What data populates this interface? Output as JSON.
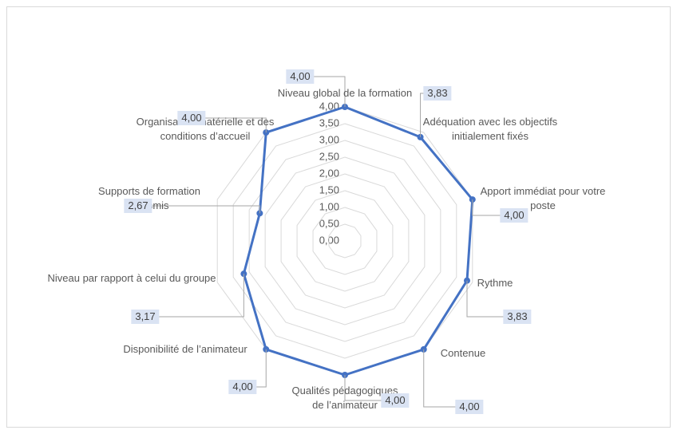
{
  "chart_data": {
    "type": "radar",
    "categories": [
      "Niveau global de la formation",
      "Adéquation avec les objectifs initialement fixés",
      "Apport immédiat pour votre poste",
      "Rythme",
      "Contenue",
      "Qualités pédagogiques de l’animateur",
      "Disponibilité de l’animateur",
      "Niveau par rapport à celui du groupe",
      "Supports de formation transmis",
      "Organisation matérielle et des conditions d’accueil"
    ],
    "values": [
      4.0,
      3.83,
      4.0,
      3.83,
      4.0,
      4.0,
      4.0,
      3.17,
      2.67,
      4.0
    ],
    "value_labels": [
      "4,00",
      "3,83",
      "4,00",
      "3,83",
      "4,00",
      "4,00",
      "4,00",
      "3,17",
      "2,67",
      "4,00"
    ],
    "color": "#4472c4",
    "ylim": [
      0,
      4
    ],
    "yticks": [
      {
        "value": 0,
        "label": "0,00"
      },
      {
        "value": 0.5,
        "label": "0,50"
      },
      {
        "value": 1,
        "label": "1,00"
      },
      {
        "value": 1.5,
        "label": "1,50"
      },
      {
        "value": 2,
        "label": "2,00"
      },
      {
        "value": 2.5,
        "label": "2,50"
      },
      {
        "value": 3,
        "label": "3,00"
      },
      {
        "value": 3.5,
        "label": "3,50"
      },
      {
        "value": 4,
        "label": "4,00"
      }
    ],
    "grid": true
  }
}
